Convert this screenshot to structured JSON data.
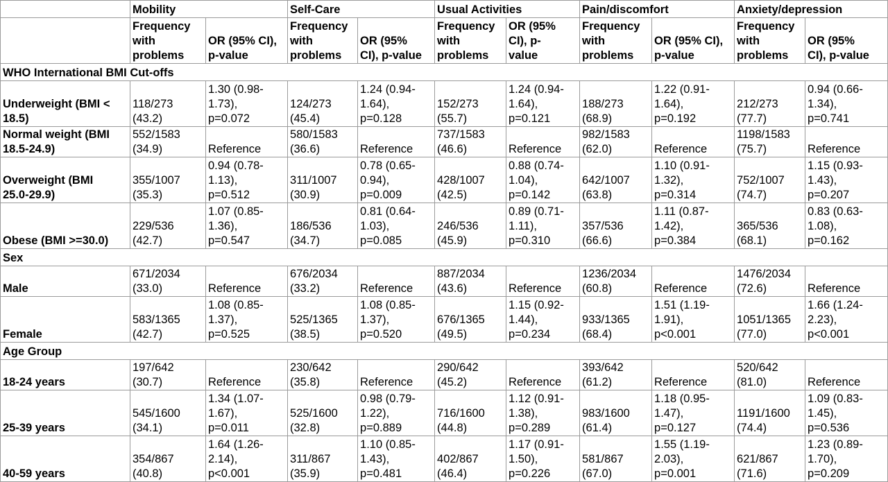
{
  "groups": [
    "Mobility",
    "Self-Care",
    "Usual Activities",
    "Pain/discomfort",
    "Anxiety/depression"
  ],
  "subheaders": [
    [
      "Frequency",
      "with",
      "problems"
    ],
    [
      "OR (95% CI),",
      "p-value"
    ],
    [
      "Frequency",
      "with",
      "problems"
    ],
    [
      "OR (95%",
      "CI), p-value"
    ],
    [
      "Frequency",
      "with",
      "problems"
    ],
    [
      "OR (95%",
      "CI), p-",
      "value"
    ],
    [
      "Frequency",
      "with",
      "problems"
    ],
    [
      "OR (95% CI),",
      "p-value"
    ],
    [
      "Frequency",
      "with",
      "problems"
    ],
    [
      "OR (95%",
      "CI), p-value"
    ]
  ],
  "sections": [
    {
      "title": "WHO International BMI Cut-offs",
      "rows": [
        {
          "label": [
            "Underweight (BMI <",
            "18.5)"
          ],
          "cells": [
            [
              "118/273",
              "(43.2)"
            ],
            [
              "1.30 (0.98-",
              "1.73),",
              "p=0.072"
            ],
            [
              "124/273",
              "(45.4)"
            ],
            [
              "1.24 (0.94-",
              "1.64),",
              "p=0.128"
            ],
            [
              "152/273",
              "(55.7)"
            ],
            [
              "1.24 (0.94-",
              "1.64),",
              "p=0.121"
            ],
            [
              "188/273",
              "(68.9)"
            ],
            [
              "1.22 (0.91-",
              "1.64),",
              "p=0.192"
            ],
            [
              "212/273",
              "(77.7)"
            ],
            [
              "0.94 (0.66-",
              "1.34),",
              "p=0.741"
            ]
          ]
        },
        {
          "label": [
            "Normal weight (BMI",
            "18.5-24.9)"
          ],
          "cells": [
            [
              "552/1583",
              "(34.9)"
            ],
            [
              "Reference"
            ],
            [
              "580/1583",
              "(36.6)"
            ],
            [
              "Reference"
            ],
            [
              "737/1583",
              "(46.6)"
            ],
            [
              "Reference"
            ],
            [
              "982/1583",
              "(62.0)"
            ],
            [
              "Reference"
            ],
            [
              "1198/1583",
              "(75.7)"
            ],
            [
              "Reference"
            ]
          ]
        },
        {
          "label": [
            "Overweight (BMI",
            "25.0-29.9)"
          ],
          "cells": [
            [
              "355/1007",
              "(35.3)"
            ],
            [
              "0.94 (0.78-",
              "1.13),",
              "p=0.512"
            ],
            [
              "311/1007",
              "(30.9)"
            ],
            [
              "0.78 (0.65-",
              "0.94),",
              "p=0.009"
            ],
            [
              "428/1007",
              "(42.5)"
            ],
            [
              "0.88 (0.74-",
              "1.04),",
              "p=0.142"
            ],
            [
              "642/1007",
              "(63.8)"
            ],
            [
              "1.10 (0.91-",
              "1.32),",
              "p=0.314"
            ],
            [
              "752/1007",
              "(74.7)"
            ],
            [
              "1.15 (0.93-",
              "1.43),",
              "p=0.207"
            ]
          ]
        },
        {
          "label": [
            "Obese (BMI >=30.0)"
          ],
          "cells": [
            [
              "229/536",
              "(42.7)"
            ],
            [
              "1.07 (0.85-",
              "1.36),",
              "p=0.547"
            ],
            [
              "186/536",
              "(34.7)"
            ],
            [
              "0.81 (0.64-",
              "1.03),",
              "p=0.085"
            ],
            [
              "246/536",
              "(45.9)"
            ],
            [
              "0.89 (0.71-",
              "1.11),",
              "p=0.310"
            ],
            [
              "357/536",
              "(66.6)"
            ],
            [
              "1.11 (0.87-",
              "1.42),",
              "p=0.384"
            ],
            [
              "365/536",
              "(68.1)"
            ],
            [
              "0.83 (0.63-",
              "1.08),",
              "p=0.162"
            ]
          ]
        }
      ]
    },
    {
      "title": "Sex",
      "rows": [
        {
          "label": [
            "Male"
          ],
          "cells": [
            [
              "671/2034",
              "(33.0)"
            ],
            [
              "Reference"
            ],
            [
              "676/2034",
              "(33.2)"
            ],
            [
              "Reference"
            ],
            [
              "887/2034",
              "(43.6)"
            ],
            [
              "Reference"
            ],
            [
              "1236/2034",
              "(60.8)"
            ],
            [
              "Reference"
            ],
            [
              "1476/2034",
              "(72.6)"
            ],
            [
              "Reference"
            ]
          ]
        },
        {
          "label": [
            "Female"
          ],
          "cells": [
            [
              "583/1365",
              "(42.7)"
            ],
            [
              "1.08 (0.85-",
              "1.37),",
              "p=0.525"
            ],
            [
              "525/1365",
              "(38.5)"
            ],
            [
              "1.08 (0.85-",
              "1.37),",
              "p=0.520"
            ],
            [
              "676/1365",
              "(49.5)"
            ],
            [
              "1.15 (0.92-",
              "1.44),",
              "p=0.234"
            ],
            [
              "933/1365",
              "(68.4)"
            ],
            [
              "1.51 (1.19-",
              "1.91),",
              "p<0.001"
            ],
            [
              "1051/1365",
              "(77.0)"
            ],
            [
              "1.66 (1.24-",
              "2.23),",
              "p<0.001"
            ]
          ]
        }
      ]
    },
    {
      "title": "Age Group",
      "rows": [
        {
          "label": [
            "18-24 years"
          ],
          "cells": [
            [
              "197/642",
              "(30.7)"
            ],
            [
              "Reference"
            ],
            [
              "230/642",
              "(35.8)"
            ],
            [
              "Reference"
            ],
            [
              "290/642",
              "(45.2)"
            ],
            [
              "Reference"
            ],
            [
              "393/642",
              "(61.2)"
            ],
            [
              "Reference"
            ],
            [
              "520/642",
              "(81.0)"
            ],
            [
              "Reference"
            ]
          ]
        },
        {
          "label": [
            "25-39 years"
          ],
          "cells": [
            [
              "545/1600",
              "(34.1)"
            ],
            [
              "1.34 (1.07-",
              "1.67),",
              "p=0.011"
            ],
            [
              "525/1600",
              "(32.8)"
            ],
            [
              "0.98 (0.79-",
              "1.22),",
              "p=0.889"
            ],
            [
              "716/1600",
              "(44.8)"
            ],
            [
              "1.12 (0.91-",
              "1.38),",
              "p=0.289"
            ],
            [
              "983/1600",
              "(61.4)"
            ],
            [
              "1.18 (0.95-",
              "1.47),",
              "p=0.127"
            ],
            [
              "1191/1600",
              "(74.4)"
            ],
            [
              "1.09 (0.83-",
              "1.45),",
              "p=0.536"
            ]
          ]
        },
        {
          "label": [
            "40-59 years"
          ],
          "cells": [
            [
              "354/867",
              "(40.8)"
            ],
            [
              "1.64 (1.26-",
              "2.14),",
              "p<0.001"
            ],
            [
              "311/867",
              "(35.9)"
            ],
            [
              "1.10 (0.85-",
              "1.43),",
              "p=0.481"
            ],
            [
              "402/867",
              "(46.4)"
            ],
            [
              "1.17 (0.91-",
              "1.50),",
              "p=0.226"
            ],
            [
              "581/867",
              "(67.0)"
            ],
            [
              "1.55 (1.19-",
              "2.03),",
              "p=0.001"
            ],
            [
              "621/867",
              "(71.6)"
            ],
            [
              "1.23 (0.89-",
              "1.70),",
              "p=0.209"
            ]
          ]
        }
      ]
    }
  ]
}
